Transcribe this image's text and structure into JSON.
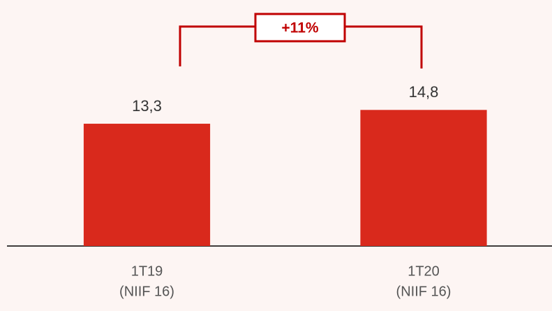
{
  "chart_data": {
    "type": "bar",
    "categories": [
      [
        "1T19",
        "(NIIF 16)"
      ],
      [
        "1T20",
        "(NIIF 16)"
      ]
    ],
    "values": [
      13.3,
      14.8
    ],
    "value_labels": [
      "13,3",
      "14,8"
    ],
    "color": "#d9291c",
    "ylim": [
      0,
      22.5
    ],
    "annotation": "+11%"
  }
}
